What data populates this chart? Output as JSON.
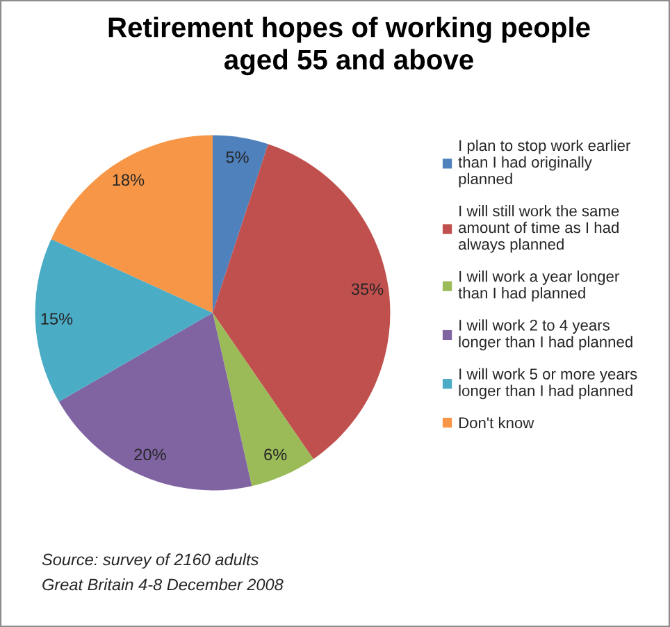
{
  "chart_data": {
    "type": "pie",
    "title": "Retirement hopes of working people aged 55 and above",
    "categories": [
      "I plan to stop work earlier than I had originally planned",
      "I will still work the same amount of time as I had always planned",
      "I will work a year longer than I had planned",
      "I will work 2 to 4 years longer than I had planned",
      "I will work 5 or more years longer than I had planned",
      "Don't know"
    ],
    "values": [
      5,
      35,
      6,
      20,
      15,
      18
    ],
    "value_labels": [
      "5%",
      "35%",
      "6%",
      "20%",
      "15%",
      "18%"
    ],
    "colors": [
      "#4f81bd",
      "#c0504d",
      "#9bbb59",
      "#8064a2",
      "#4bacc6",
      "#f79646"
    ],
    "legend": "right",
    "annotations": [
      "Source: survey of 2160 adults",
      "Great Britain 4-8 December 2008"
    ]
  }
}
